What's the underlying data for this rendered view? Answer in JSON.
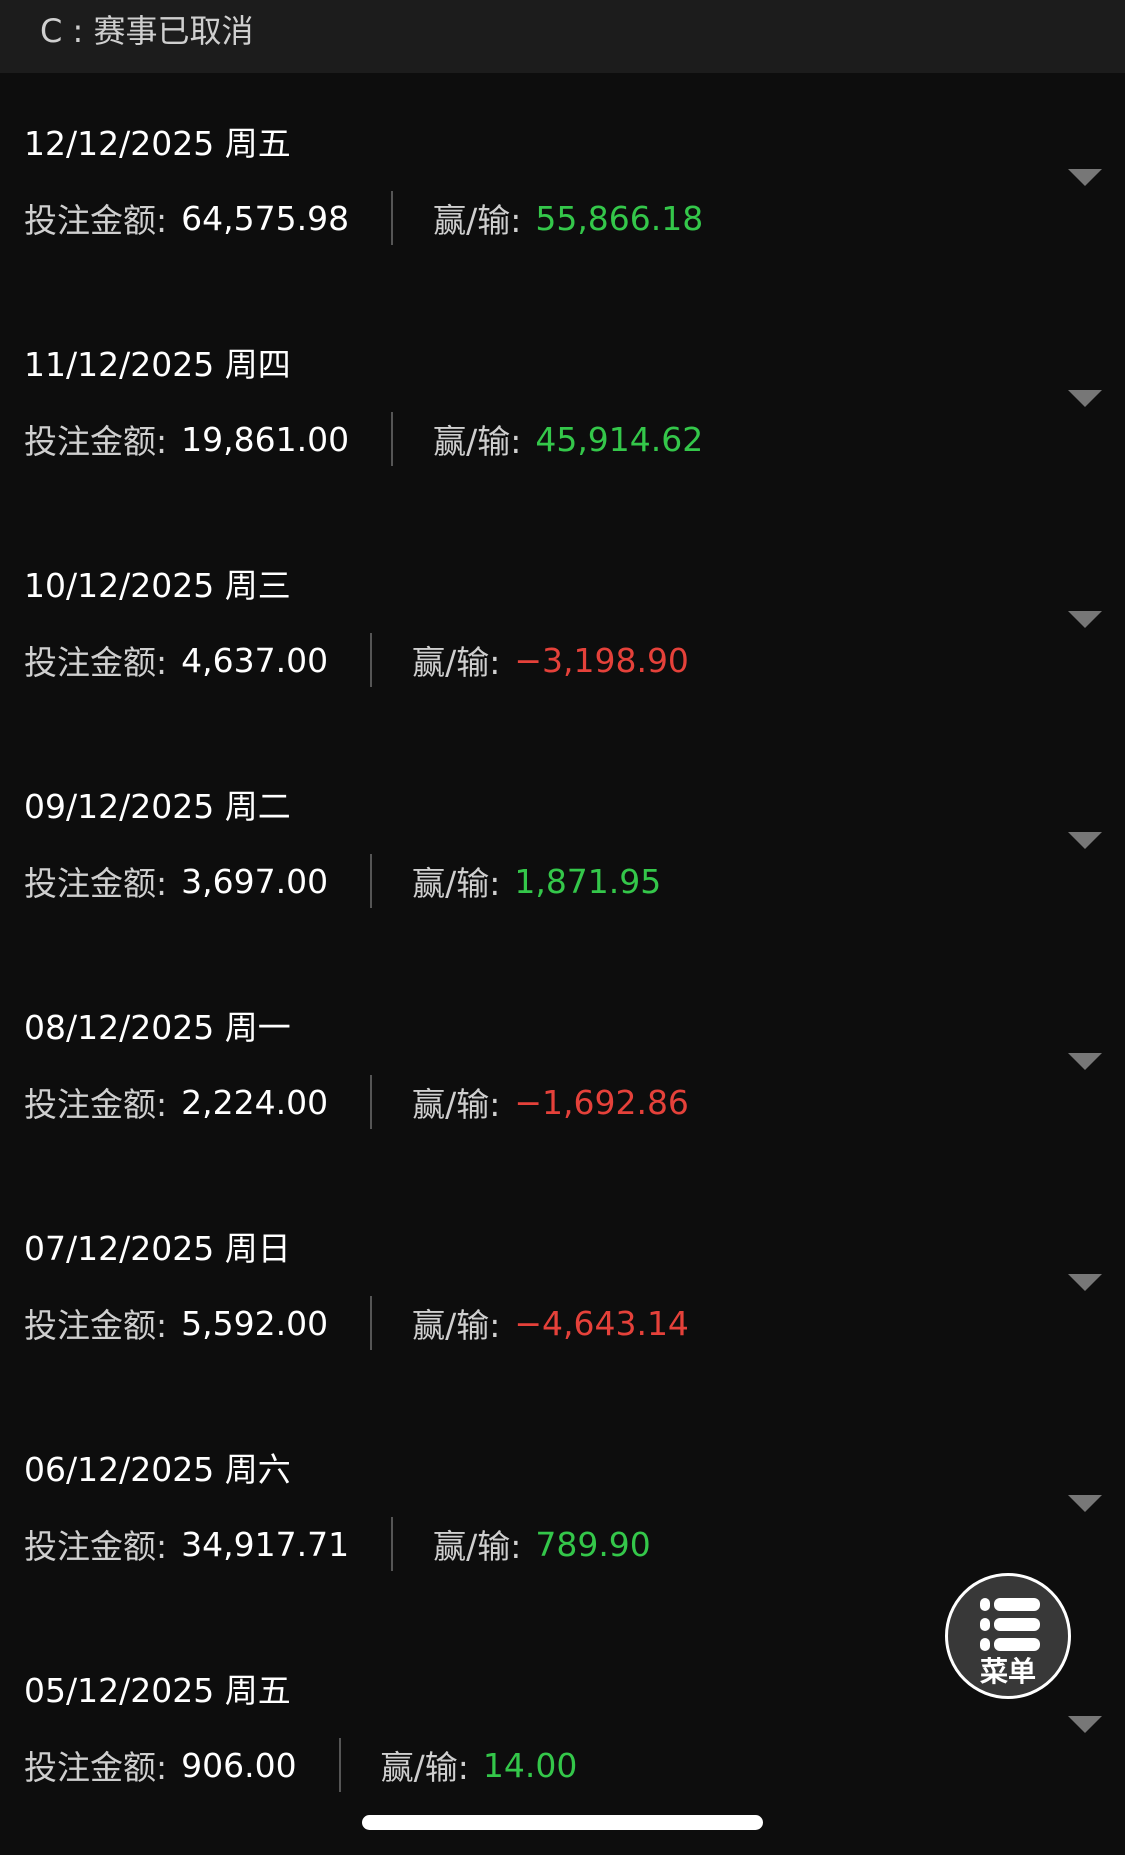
{
  "header": {
    "title": "C : 赛事已取消"
  },
  "labels": {
    "stake": "投注金额:",
    "winloss": "赢/输:"
  },
  "colors": {
    "positive": "#34c74a",
    "negative": "#e5413a"
  },
  "rows": [
    {
      "date": "12/12/2025 周五",
      "stake": "64,575.98",
      "winloss": "55,866.18",
      "positive": true
    },
    {
      "date": "11/12/2025 周四",
      "stake": "19,861.00",
      "winloss": "45,914.62",
      "positive": true
    },
    {
      "date": "10/12/2025 周三",
      "stake": "4,637.00",
      "winloss": "−3,198.90",
      "positive": false
    },
    {
      "date": "09/12/2025 周二",
      "stake": "3,697.00",
      "winloss": "1,871.95",
      "positive": true
    },
    {
      "date": "08/12/2025 周一",
      "stake": "2,224.00",
      "winloss": "−1,692.86",
      "positive": false
    },
    {
      "date": "07/12/2025 周日",
      "stake": "5,592.00",
      "winloss": "−4,643.14",
      "positive": false
    },
    {
      "date": "06/12/2025 周六",
      "stake": "34,917.71",
      "winloss": "789.90",
      "positive": true
    },
    {
      "date": "05/12/2025 周五",
      "stake": "906.00",
      "winloss": "14.00",
      "positive": true
    }
  ],
  "menu": {
    "label": "菜单",
    "icon": "list-icon"
  }
}
